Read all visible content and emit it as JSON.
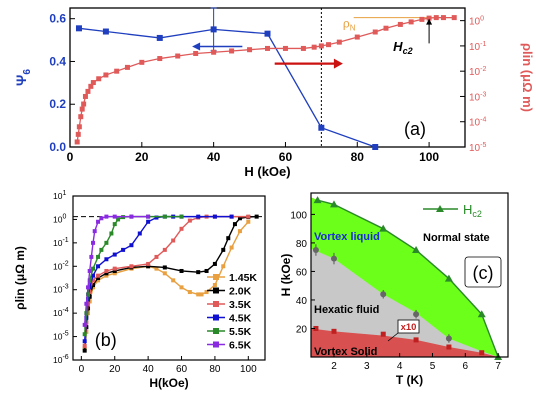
{
  "colors": {
    "blue": "#1f3fbf",
    "red": "#e05a5a",
    "orange": "#e8a040",
    "black": "#000000",
    "green": "#2a8a2a",
    "purple": "#8a2be2",
    "darkblue": "#1010d0",
    "phase_green": "#6cff1a",
    "phase_gray": "#c8c8c8",
    "phase_red": "#d85050",
    "grid_bg": "#ffffff"
  },
  "chart_data": [
    {
      "panel": "(a)",
      "type": "line",
      "xlabel": "H (kOe)",
      "xlim": [
        0,
        110
      ],
      "xticks": [
        "0",
        "20",
        "40",
        "60",
        "80",
        "100"
      ],
      "left_axis": {
        "label": "Ψ6",
        "ylim": [
          0,
          0.65
        ],
        "ticks": [
          "0.0",
          "0.2",
          "0.4",
          "0.6"
        ]
      },
      "right_axis": {
        "label": "ρlin (μΩ m)",
        "scale": "log",
        "ylim_exp": [
          -5,
          0.5
        ],
        "ticks": [
          "10^0",
          "10^-1",
          "10^-2",
          "10^-3",
          "10^-4",
          "10^-5"
        ]
      },
      "vline_x": 70,
      "annotations": {
        "rho_n": "ρN",
        "hc2": "Hc2"
      },
      "series": [
        {
          "axis": "left",
          "color": "blue",
          "x": [
            2.5,
            10,
            25,
            40,
            55,
            70,
            85
          ],
          "y": [
            0.555,
            0.54,
            0.51,
            0.55,
            0.53,
            0.09,
            0.0
          ],
          "error": [
            0,
            0,
            0,
            0.1,
            0,
            0,
            0
          ]
        },
        {
          "axis": "right",
          "color": "red",
          "x": [
            2,
            2.3,
            2.6,
            3,
            3.4,
            3.8,
            4.3,
            5,
            5.8,
            6.5,
            8,
            10,
            13,
            16,
            20,
            25,
            30,
            35,
            40,
            45,
            50,
            55,
            60,
            65,
            68,
            70,
            72,
            75,
            80,
            85,
            88,
            92,
            95,
            98,
            100,
            102,
            104,
            107
          ],
          "logy": [
            -4.8,
            -4.5,
            -4.2,
            -3.8,
            -3.5,
            -3.3,
            -3.0,
            -2.8,
            -2.6,
            -2.45,
            -2.3,
            -2.15,
            -2.0,
            -1.85,
            -1.65,
            -1.5,
            -1.4,
            -1.3,
            -1.25,
            -1.2,
            -1.15,
            -1.1,
            -1.1,
            -1.1,
            -1.05,
            -1.0,
            -0.95,
            -0.85,
            -0.65,
            -0.45,
            -0.3,
            -0.15,
            -0.05,
            0.05,
            0.1,
            0.12,
            0.12,
            0.12
          ]
        }
      ]
    },
    {
      "panel": "(b)",
      "type": "line",
      "xlabel": "H(kOe)",
      "ylabel": "ρlin (μΩ m)",
      "xlim": [
        -5,
        110
      ],
      "xticks": [
        "0",
        "20",
        "40",
        "60",
        "80",
        "100"
      ],
      "yscale": "log",
      "ylim_exp": [
        -6,
        1
      ],
      "yticks": [
        "10^1",
        "10^0",
        "10^-1",
        "10^-2",
        "10^-3",
        "10^-4",
        "10^-5",
        "10^-6"
      ],
      "hline_logy": 0.12,
      "series": [
        {
          "name": "1.45K",
          "color": "orange",
          "x": [
            2,
            3,
            4,
            5,
            7,
            10,
            15,
            20,
            30,
            40,
            45,
            50,
            55,
            60,
            65,
            70,
            72,
            75,
            80,
            85,
            90,
            95,
            100
          ],
          "logy": [
            -5.5,
            -4.8,
            -4.0,
            -3.5,
            -2.9,
            -2.6,
            -2.4,
            -2.3,
            -2.1,
            -2.0,
            -2.1,
            -2.3,
            -2.6,
            -2.9,
            -3.1,
            -3.2,
            -3.2,
            -3.1,
            -2.8,
            -2.0,
            -1.2,
            -0.5,
            -0.1
          ]
        },
        {
          "name": "2.0K",
          "color": "black",
          "x": [
            2,
            3,
            4,
            5,
            7,
            10,
            15,
            20,
            30,
            40,
            50,
            60,
            70,
            75,
            80,
            85,
            88,
            92,
            95,
            100,
            105
          ],
          "logy": [
            -5.6,
            -4.6,
            -3.8,
            -3.3,
            -2.8,
            -2.5,
            -2.3,
            -2.2,
            -2.05,
            -2.0,
            -2.05,
            -2.2,
            -2.25,
            -2.2,
            -1.9,
            -1.3,
            -0.8,
            -0.2,
            0.05,
            0.1,
            0.12
          ]
        },
        {
          "name": "3.5K",
          "color": "red",
          "x": [
            2,
            3,
            4,
            5,
            7,
            10,
            15,
            20,
            30,
            40,
            45,
            50,
            55,
            60,
            65,
            70,
            75,
            80,
            90,
            100
          ],
          "logy": [
            -5.4,
            -4.4,
            -3.6,
            -3.1,
            -2.6,
            -2.4,
            -2.2,
            -2.1,
            -2.0,
            -1.9,
            -1.6,
            -1.3,
            -0.9,
            -0.4,
            -0.05,
            0.08,
            0.12,
            0.12,
            0.12,
            0.12
          ]
        },
        {
          "name": "4.5K",
          "color": "darkblue",
          "x": [
            2,
            3,
            4,
            5,
            7,
            10,
            15,
            20,
            25,
            30,
            35,
            40,
            45,
            50,
            55,
            60,
            70,
            80,
            90
          ],
          "logy": [
            -5.2,
            -4.2,
            -3.4,
            -2.9,
            -2.4,
            -2.0,
            -1.7,
            -1.5,
            -1.3,
            -1.1,
            -0.6,
            -0.1,
            0.08,
            0.12,
            0.12,
            0.12,
            0.12,
            0.12,
            0.12
          ]
        },
        {
          "name": "5.5K",
          "color": "green",
          "x": [
            2,
            3,
            4,
            5,
            7,
            10,
            12,
            15,
            18,
            20,
            22,
            25,
            30,
            40,
            50,
            60
          ],
          "logy": [
            -4.9,
            -4.0,
            -3.2,
            -2.6,
            -2.1,
            -1.6,
            -1.3,
            -1.0,
            -0.6,
            -0.2,
            0.0,
            0.1,
            0.12,
            0.12,
            0.12,
            0.12
          ]
        },
        {
          "name": "6.5K",
          "color": "purple",
          "x": [
            2,
            3,
            4,
            5,
            6,
            7,
            8,
            10,
            12,
            15,
            20,
            30,
            40
          ],
          "logy": [
            -4.5,
            -3.6,
            -2.9,
            -2.2,
            -1.6,
            -1.0,
            -0.5,
            -0.1,
            0.05,
            0.12,
            0.12,
            0.12,
            0.12
          ]
        }
      ]
    },
    {
      "panel": "(c)",
      "type": "area",
      "xlabel": "T (K)",
      "ylabel": "H (kOe)",
      "xlim": [
        1.3,
        7.3
      ],
      "ylim": [
        0,
        115
      ],
      "xticks": [
        "2",
        "3",
        "4",
        "5",
        "6",
        "7"
      ],
      "yticks": [
        "20",
        "40",
        "60",
        "80",
        "100"
      ],
      "region_labels": {
        "vortex_liquid": "Vortex liquid",
        "normal": "Normal state",
        "hexatic": "Hexatic fluid",
        "solid": "Vortex Solid",
        "x10": "x10"
      },
      "legend": "Hc2",
      "hc2": {
        "x": [
          1.5,
          2.0,
          3.5,
          4.5,
          5.5,
          6.5,
          7.0
        ],
        "y": [
          110,
          107,
          90,
          75,
          55,
          30,
          0
        ]
      },
      "boundary_liquid_hexatic": {
        "x": [
          1.3,
          2.0,
          3.5,
          4.5,
          5.5,
          6.5
        ],
        "y": [
          76,
          69,
          44,
          31,
          13,
          4
        ]
      },
      "boundary_hexatic_solid": {
        "x": [
          1.3,
          2.0,
          3.5,
          4.5,
          5.5,
          6.5
        ],
        "y": [
          20,
          18,
          15,
          12,
          7,
          3
        ]
      },
      "gray_points": {
        "x": [
          1.45,
          2.0,
          3.5,
          4.5,
          5.5
        ],
        "y": [
          75,
          69,
          44,
          30,
          13
        ],
        "err": [
          4,
          4,
          3,
          3,
          3
        ]
      },
      "red_points": {
        "x": [
          1.45,
          2.0,
          3.5,
          4.5,
          5.5,
          6.5
        ],
        "y": [
          20,
          18,
          16,
          12,
          7,
          3
        ]
      }
    }
  ],
  "labels": {
    "panel_a": "(a)",
    "panel_b": "(b)",
    "panel_c": "(c)",
    "a_xlabel": "H (kOe)",
    "a_left": "Ψ6",
    "a_right": "ρlin (μΩ m)",
    "b_xlabel": "H(kOe)",
    "b_ylabel": "ρlin (μΩ m)",
    "c_xlabel": "T (K)",
    "c_ylabel": "H (kOe)"
  }
}
